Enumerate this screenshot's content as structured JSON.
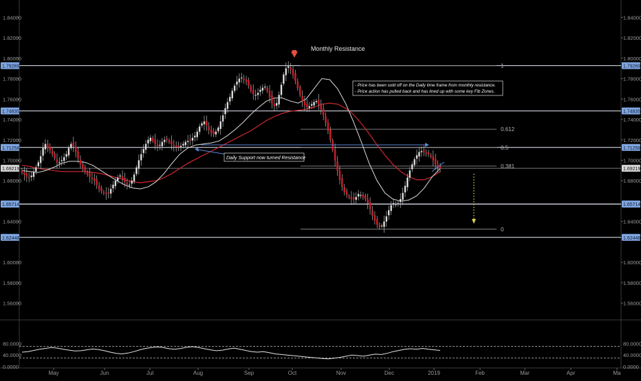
{
  "chart_data": {
    "type": "candlestick",
    "y_axis": {
      "ticks": [
        {
          "v": 1.84,
          "label": "1.84000"
        },
        {
          "v": 1.82,
          "label": "1.82000"
        },
        {
          "v": 1.8,
          "label": "1.80000"
        },
        {
          "v": 1.78,
          "label": "1.78000"
        },
        {
          "v": 1.76,
          "label": "1.76000"
        },
        {
          "v": 1.74,
          "label": "1.74000"
        },
        {
          "v": 1.72,
          "label": "1.72000"
        },
        {
          "v": 1.7,
          "label": "1.70000"
        },
        {
          "v": 1.68,
          "label": "1.68000"
        },
        {
          "v": 1.64,
          "label": "1.64000"
        },
        {
          "v": 1.6,
          "label": "1.60000"
        },
        {
          "v": 1.58,
          "label": "1.58000"
        },
        {
          "v": 1.56,
          "label": "1.56000"
        }
      ],
      "range": [
        1.545,
        1.855
      ]
    },
    "x_axis": {
      "labels": [
        "May",
        "Jun",
        "Jul",
        "Aug",
        "Sep",
        "Oct",
        "Nov",
        "Dec",
        "2019",
        "Feb",
        "Mar",
        "Apr",
        "Ma"
      ]
    },
    "horizontal_levels": [
      {
        "value": 1.79269,
        "label": "1.79269"
      },
      {
        "value": 1.74835,
        "label": "1.74835"
      },
      {
        "value": 1.71258,
        "label": "1.71258"
      },
      {
        "value": 1.65712,
        "label": "1.65712"
      },
      {
        "value": 1.65714,
        "label": "1.65714"
      },
      {
        "value": 1.62448,
        "label": "1.62448"
      }
    ],
    "extra_price_labels": [
      {
        "value": 1.74792,
        "label": "1.74792"
      },
      {
        "value": 1.69219,
        "label": "1.69219"
      }
    ],
    "current_price": {
      "value": 1.69219,
      "label": "1.69219"
    },
    "fib_levels": [
      {
        "value": 1.79269,
        "label": "1"
      },
      {
        "value": 1.7305,
        "label": "0.612"
      },
      {
        "value": 1.71258,
        "label": "0.5"
      },
      {
        "value": 1.6943,
        "label": "0.381"
      },
      {
        "value": 1.6325,
        "label": "0"
      }
    ],
    "annotations": {
      "monthly_resistance": "Monthly Resistance",
      "support_resistance": "Daily Support now turned Resistance",
      "commentary": [
        "- Price has been sold off on the Daily time frame from monthly resistance.",
        "- Price action has pulled back and has lined up with some key Fib Zones."
      ]
    },
    "series": [
      {
        "points": [
          1.688,
          1.686,
          1.684,
          1.683,
          1.685,
          1.689,
          1.693,
          1.698,
          1.704,
          1.712,
          1.716,
          1.712,
          1.71,
          1.706,
          1.702,
          1.698,
          1.698,
          1.7,
          1.703,
          1.706,
          1.712,
          1.716,
          1.714,
          1.708,
          1.702,
          1.696,
          1.692,
          1.689,
          1.686,
          1.684,
          1.682,
          1.68,
          1.676,
          1.672,
          1.67,
          1.668,
          1.667,
          1.668,
          1.672,
          1.676,
          1.68,
          1.683,
          1.685,
          1.682,
          1.679,
          1.676,
          1.676,
          1.68,
          1.686,
          1.693,
          1.7,
          1.706,
          1.711,
          1.716,
          1.72,
          1.722,
          1.719,
          1.716,
          1.714,
          1.715,
          1.718,
          1.72,
          1.72,
          1.718,
          1.716,
          1.714,
          1.713,
          1.713,
          1.714,
          1.716,
          1.718,
          1.719,
          1.72,
          1.722,
          1.724,
          1.728,
          1.733,
          1.736,
          1.738,
          1.734,
          1.73,
          1.727,
          1.726,
          1.728,
          1.732,
          1.738,
          1.744,
          1.751,
          1.757,
          1.762,
          1.768,
          1.773,
          1.777,
          1.78,
          1.781,
          1.779,
          1.777,
          1.773,
          1.768,
          1.765,
          1.764,
          1.766,
          1.769,
          1.771,
          1.772,
          1.768,
          1.762,
          1.756,
          1.753,
          1.756,
          1.764,
          1.774,
          1.784,
          1.79,
          1.792,
          1.789,
          1.784,
          1.778,
          1.771,
          1.764,
          1.758,
          1.754,
          1.752,
          1.753,
          1.755,
          1.757,
          1.758,
          1.755,
          1.75,
          1.744,
          1.737,
          1.729,
          1.72,
          1.71,
          1.7,
          1.69,
          1.681,
          1.674,
          1.669,
          1.666,
          1.664,
          1.662,
          1.662,
          1.664,
          1.667,
          1.666,
          1.664,
          1.662,
          1.658,
          1.652,
          1.646,
          1.641,
          1.637,
          1.635,
          1.636,
          1.64,
          1.645,
          1.651,
          1.656,
          1.658,
          1.657,
          1.658,
          1.662,
          1.668,
          1.675,
          1.683,
          1.69,
          1.696,
          1.701,
          1.705,
          1.708,
          1.709,
          1.708,
          1.707,
          1.706,
          1.704,
          1.7,
          1.696,
          1.693,
          1.692
        ]
      },
      {
        "name": "",
        "values": [
          1.69,
          1.689,
          1.688,
          1.69,
          1.693,
          1.697,
          1.699,
          1.699,
          1.698,
          1.695,
          1.69,
          1.685,
          1.68,
          1.676,
          1.673,
          1.672,
          1.674,
          1.679,
          1.687,
          1.697,
          1.706,
          1.712,
          1.715,
          1.716,
          1.717,
          1.719,
          1.724,
          1.73,
          1.737,
          1.745,
          1.752,
          1.758,
          1.761,
          1.761,
          1.758,
          1.756,
          1.76,
          1.77,
          1.78,
          1.779,
          1.77,
          1.756,
          1.738,
          1.718,
          1.697,
          1.68,
          1.668,
          1.662,
          1.66,
          1.661,
          1.665,
          1.673,
          1.684,
          1.692
        ]
      },
      {
        "name": "",
        "values": [
          1.695,
          1.694,
          1.692,
          1.691,
          1.69,
          1.689,
          1.689,
          1.689,
          1.689,
          1.688,
          1.687,
          1.685,
          1.683,
          1.681,
          1.679,
          1.678,
          1.679,
          1.68,
          1.683,
          1.687,
          1.692,
          1.697,
          1.701,
          1.705,
          1.709,
          1.713,
          1.717,
          1.721,
          1.725,
          1.729,
          1.734,
          1.739,
          1.743,
          1.746,
          1.748,
          1.749,
          1.75,
          1.752,
          1.755,
          1.756,
          1.755,
          1.751,
          1.745,
          1.736,
          1.726,
          1.715,
          1.705,
          1.696,
          1.689,
          1.684,
          1.681,
          1.681,
          1.684,
          1.689
        ]
      }
    ],
    "rsi": {
      "ticks": [
        {
          "v": 80,
          "label": "80.0000"
        },
        {
          "v": 40,
          "label": "40.0000"
        },
        {
          "v": 0,
          "label": "0.0000"
        }
      ],
      "levels": [
        70,
        30
      ],
      "values": [
        50,
        52,
        56,
        60,
        63,
        66,
        64,
        60,
        57,
        54,
        55,
        58,
        61,
        59,
        55,
        50,
        46,
        44,
        47,
        52,
        58,
        63,
        66,
        68,
        66,
        62,
        60,
        63,
        67,
        69,
        66,
        62,
        58,
        55,
        57,
        61,
        64,
        60,
        56,
        52,
        50,
        52,
        48,
        44,
        42,
        40,
        38,
        36,
        34,
        32,
        30,
        28,
        27,
        29,
        32,
        36,
        40,
        38,
        36,
        40,
        43,
        42,
        46,
        52,
        56,
        60,
        62,
        60,
        63,
        60,
        58,
        56
      ]
    }
  }
}
